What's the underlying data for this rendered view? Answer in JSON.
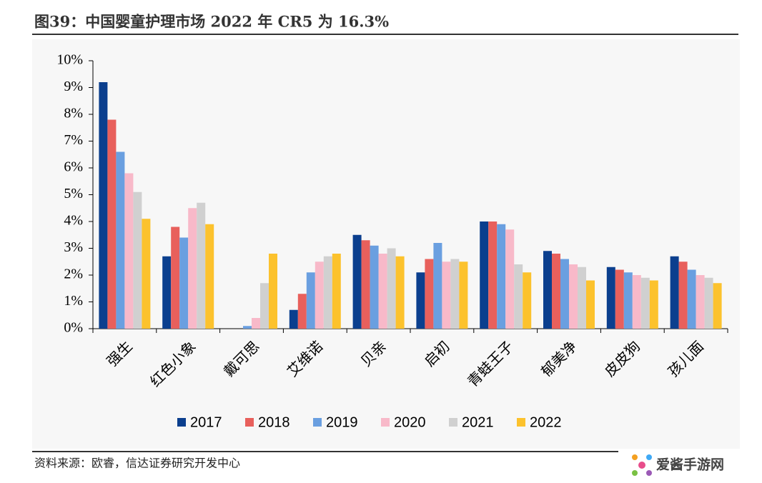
{
  "chart_data": {
    "type": "bar",
    "title": "图39：中国婴童护理市场 2022 年 CR5 为 16.3%",
    "source": "资料来源：欧睿，信达证券研究开发中心",
    "watermark": "爱酱手游网",
    "categories": [
      "强生",
      "红色小象",
      "戴可思",
      "艾维诺",
      "贝亲",
      "启初",
      "青蛙王子",
      "郁美净",
      "皮皮狗",
      "孩儿面"
    ],
    "series": [
      {
        "name": "2017",
        "color": "#0b3f8e",
        "values": [
          9.2,
          2.7,
          0,
          0.7,
          3.5,
          2.1,
          4.0,
          2.9,
          2.3,
          2.7
        ]
      },
      {
        "name": "2018",
        "color": "#e8605c",
        "values": [
          7.8,
          3.8,
          0,
          1.3,
          3.3,
          2.6,
          4.0,
          2.8,
          2.2,
          2.5
        ]
      },
      {
        "name": "2019",
        "color": "#6a9fe0",
        "values": [
          6.6,
          3.4,
          0.1,
          2.1,
          3.1,
          3.2,
          3.9,
          2.6,
          2.1,
          2.2
        ]
      },
      {
        "name": "2020",
        "color": "#f8b9c9",
        "values": [
          5.8,
          4.5,
          0.4,
          2.5,
          2.8,
          2.5,
          3.7,
          2.4,
          2.0,
          2.0
        ]
      },
      {
        "name": "2021",
        "color": "#d0d0d0",
        "values": [
          5.1,
          4.7,
          1.7,
          2.7,
          3.0,
          2.6,
          2.4,
          2.3,
          1.9,
          1.9
        ]
      },
      {
        "name": "2022",
        "color": "#fcc22d",
        "values": [
          4.1,
          3.9,
          2.8,
          2.8,
          2.7,
          2.5,
          2.1,
          1.8,
          1.8,
          1.7
        ]
      }
    ],
    "ylim": [
      0,
      10
    ],
    "yticks": [
      {
        "value": 0,
        "label": "0%"
      },
      {
        "value": 1,
        "label": "1%"
      },
      {
        "value": 2,
        "label": "2%"
      },
      {
        "value": 3,
        "label": "3%"
      },
      {
        "value": 4,
        "label": "4%"
      },
      {
        "value": 5,
        "label": "5%"
      },
      {
        "value": 6,
        "label": "6%"
      },
      {
        "value": 7,
        "label": "7%"
      },
      {
        "value": 8,
        "label": "8%"
      },
      {
        "value": 9,
        "label": "9%"
      },
      {
        "value": 10,
        "label": "10%"
      }
    ],
    "grid": false
  }
}
